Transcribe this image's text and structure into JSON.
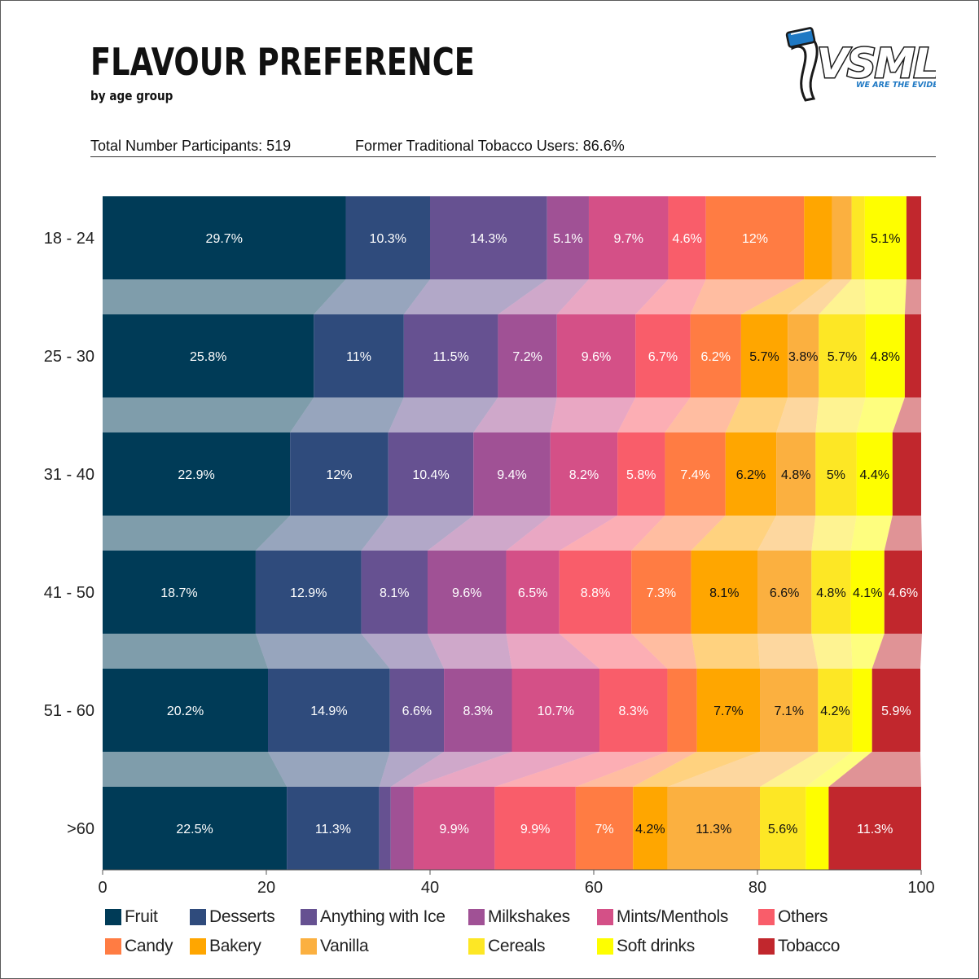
{
  "header": {
    "title": "FLAVOUR PREFERENCE",
    "subtitle": "by age group",
    "participants": "Total Number Participants: 519",
    "former_users": "Former Traditional Tobacco Users: 86.6%"
  },
  "logo": {
    "brand": "VSML",
    "tagline": "WE ARE THE EVIDENCE",
    "colors": {
      "blue": "#1f79c4",
      "outline": "#1a1a1a"
    }
  },
  "colors": {
    "Fruit": "#003b57",
    "Desserts": "#2f4b7c",
    "Anything with Ice": "#665191",
    "Milkshakes": "#a05195",
    "Mints/Menthols": "#d45087",
    "Others": "#f95d6a",
    "Candy": "#ff7c43",
    "Bakery": "#ffa600",
    "Vanilla": "#fbb040",
    "Cereals": "#fde725",
    "Soft drinks": "#fefe00",
    "Tobacco": "#c1272d"
  },
  "legend": {
    "rows": [
      [
        "Fruit",
        "Desserts",
        "Anything with Ice",
        "Milkshakes",
        "Mints/Menthols",
        "Others"
      ],
      [
        "Candy",
        "Bakery",
        "Vanilla",
        "Cereals",
        "Soft drinks",
        "Tobacco"
      ]
    ]
  },
  "chart_data": {
    "type": "bar",
    "orientation": "horizontal",
    "stacked": true,
    "title": "FLAVOUR PREFERENCE",
    "subtitle": "by age group",
    "xlim": [
      0,
      100
    ],
    "xticks": [
      0,
      20,
      40,
      60,
      80,
      100
    ],
    "grid": false,
    "legend_position": "bottom",
    "categories": [
      "18 - 24",
      "25 - 30",
      "31 - 40",
      "41 - 50",
      "51 - 60",
      ">60"
    ],
    "series": [
      {
        "name": "Fruit",
        "values": [
          29.7,
          25.8,
          22.9,
          18.7,
          20.2,
          22.5
        ],
        "labels": [
          "29.7%",
          "25.8%",
          "22.9%",
          "18.7%",
          "20.2%",
          "22.5%"
        ]
      },
      {
        "name": "Desserts",
        "values": [
          10.3,
          11,
          12,
          12.9,
          14.9,
          11.3
        ],
        "labels": [
          "10.3%",
          "11%",
          "12%",
          "12.9%",
          "14.9%",
          "11.3%"
        ]
      },
      {
        "name": "Anything with Ice",
        "values": [
          14.3,
          11.5,
          10.4,
          8.1,
          6.6,
          1.4
        ],
        "labels": [
          "14.3%",
          "11.5%",
          "10.4%",
          "8.1%",
          "6.6%",
          ""
        ]
      },
      {
        "name": "Milkshakes",
        "values": [
          5.1,
          7.2,
          9.4,
          9.6,
          8.3,
          2.8
        ],
        "labels": [
          "5.1%",
          "7.2%",
          "9.4%",
          "9.6%",
          "8.3%",
          ""
        ]
      },
      {
        "name": "Mints/Menthols",
        "values": [
          9.7,
          9.6,
          8.2,
          6.5,
          10.7,
          9.9
        ],
        "labels": [
          "9.7%",
          "9.6%",
          "8.2%",
          "6.5%",
          "10.7%",
          "9.9%"
        ]
      },
      {
        "name": "Others",
        "values": [
          4.6,
          6.7,
          5.8,
          8.8,
          8.3,
          9.9
        ],
        "labels": [
          "4.6%",
          "6.7%",
          "5.8%",
          "8.8%",
          "8.3%",
          "9.9%"
        ]
      },
      {
        "name": "Candy",
        "values": [
          12,
          6.2,
          7.4,
          7.3,
          3.6,
          7
        ],
        "labels": [
          "12%",
          "6.2%",
          "7.4%",
          "7.3%",
          "",
          "7%"
        ]
      },
      {
        "name": "Bakery",
        "values": [
          3.4,
          5.7,
          6.2,
          8.1,
          7.7,
          4.2
        ],
        "labels": [
          "",
          "5.7%",
          "6.2%",
          "8.1%",
          "7.7%",
          "4.2%"
        ]
      },
      {
        "name": "Vanilla",
        "values": [
          2.4,
          3.8,
          4.8,
          6.6,
          7.1,
          11.3
        ],
        "labels": [
          "",
          "3.8%",
          "4.8%",
          "6.6%",
          "7.1%",
          "11.3%"
        ]
      },
      {
        "name": "Cereals",
        "values": [
          1.6,
          5.7,
          5,
          4.8,
          4.2,
          5.6
        ],
        "labels": [
          "",
          "5.7%",
          "5%",
          "4.8%",
          "4.2%",
          "5.6%"
        ]
      },
      {
        "name": "Soft drinks",
        "values": [
          5.1,
          4.8,
          4.4,
          4.1,
          2.4,
          2.8
        ],
        "labels": [
          "5.1%",
          "4.8%",
          "4.4%",
          "4.1%",
          "",
          ""
        ]
      },
      {
        "name": "Tobacco",
        "values": [
          1.8,
          2.0,
          3.5,
          4.6,
          5.9,
          11.3
        ],
        "labels": [
          "",
          "",
          "",
          "4.6%",
          "5.9%",
          "11.3%"
        ]
      }
    ]
  }
}
